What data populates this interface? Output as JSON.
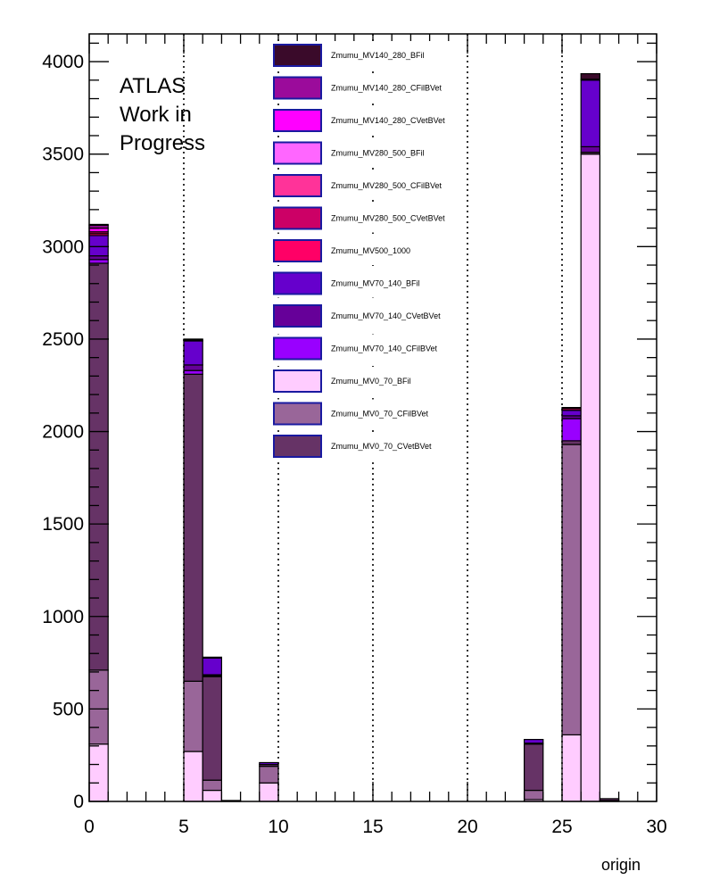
{
  "chart_data": {
    "type": "bar",
    "stacked": true,
    "xlabel": "origin",
    "ylabel": "",
    "xlim": [
      0,
      30
    ],
    "ylim": [
      0,
      4150
    ],
    "x_ticks": [
      0,
      5,
      10,
      15,
      20,
      25,
      30
    ],
    "y_ticks": [
      0,
      500,
      1000,
      1500,
      2000,
      2500,
      3000,
      3500,
      4000
    ],
    "bin_width": 1,
    "annotation": [
      "ATLAS",
      "Work in",
      "Progress"
    ],
    "legend_position": "top-center",
    "vertical_gridlines_x": [
      5,
      10,
      15,
      20,
      25
    ],
    "stack_order": [
      "Zmumu_MV0_70_BFil",
      "Zmumu_MV0_70_CFilBVet",
      "Zmumu_MV0_70_CVetBVet",
      "Zmumu_MV70_140_CFilBVet",
      "Zmumu_MV70_140_CVetBVet",
      "Zmumu_MV70_140_BFil",
      "Zmumu_MV500_1000",
      "Zmumu_MV280_500_CVetBVet",
      "Zmumu_MV280_500_CFilBVet",
      "Zmumu_MV280_500_BFil",
      "Zmumu_MV140_280_CVetBVet",
      "Zmumu_MV140_280_CFilBVet",
      "Zmumu_MV140_280_BFil"
    ],
    "series": [
      {
        "name": "Zmumu_MV140_280_BFil",
        "color": "#3a0a2a",
        "values": [
          5,
          0,
          0,
          0,
          0,
          0,
          0,
          0,
          0,
          0,
          0,
          0,
          0,
          0,
          0,
          0,
          0,
          0,
          0,
          0,
          0,
          0,
          0,
          0,
          0,
          0,
          30,
          0,
          0,
          0
        ]
      },
      {
        "name": "Zmumu_MV140_280_CFilBVet",
        "color": "#9b0b9b",
        "values": [
          15,
          0,
          0,
          0,
          0,
          5,
          5,
          0,
          0,
          0,
          0,
          0,
          0,
          0,
          0,
          0,
          0,
          0,
          0,
          0,
          0,
          0,
          0,
          0,
          0,
          5,
          5,
          0,
          0,
          0
        ]
      },
      {
        "name": "Zmumu_MV140_280_CVetBVet",
        "color": "#ff00ff",
        "values": [
          20,
          0,
          0,
          0,
          0,
          0,
          0,
          0,
          0,
          0,
          0,
          0,
          0,
          0,
          0,
          0,
          0,
          0,
          0,
          0,
          0,
          0,
          0,
          0,
          0,
          0,
          0,
          0,
          0,
          0
        ]
      },
      {
        "name": "Zmumu_MV280_500_BFil",
        "color": "#ff66ff",
        "values": [
          0,
          0,
          0,
          0,
          0,
          0,
          0,
          0,
          0,
          0,
          0,
          0,
          0,
          0,
          0,
          0,
          0,
          0,
          0,
          0,
          0,
          0,
          0,
          0,
          0,
          0,
          0,
          0,
          0,
          0
        ]
      },
      {
        "name": "Zmumu_MV280_500_CFilBVet",
        "color": "#ff3399",
        "values": [
          0,
          0,
          0,
          0,
          0,
          0,
          0,
          0,
          0,
          0,
          0,
          0,
          0,
          0,
          0,
          0,
          0,
          0,
          0,
          0,
          0,
          0,
          0,
          0,
          0,
          0,
          0,
          0,
          0,
          0
        ]
      },
      {
        "name": "Zmumu_MV280_500_CVetBVet",
        "color": "#cc0066",
        "values": [
          10,
          0,
          0,
          0,
          0,
          5,
          0,
          0,
          0,
          0,
          0,
          0,
          0,
          0,
          0,
          0,
          0,
          0,
          0,
          0,
          0,
          0,
          0,
          0,
          0,
          10,
          0,
          0,
          0,
          0
        ]
      },
      {
        "name": "Zmumu_MV500_1000",
        "color": "#ff0066",
        "values": [
          10,
          0,
          0,
          0,
          0,
          0,
          0,
          0,
          0,
          0,
          0,
          0,
          0,
          0,
          0,
          0,
          0,
          0,
          0,
          0,
          0,
          0,
          0,
          0,
          0,
          0,
          0,
          0,
          0,
          0
        ]
      },
      {
        "name": "Zmumu_MV70_140_BFil",
        "color": "#6600cc",
        "values": [
          110,
          0,
          0,
          0,
          0,
          130,
          90,
          0,
          0,
          10,
          0,
          0,
          0,
          0,
          0,
          0,
          0,
          0,
          0,
          0,
          0,
          0,
          0,
          20,
          0,
          30,
          360,
          0,
          0,
          0
        ]
      },
      {
        "name": "Zmumu_MV70_140_CVetBVet",
        "color": "#660099",
        "values": [
          20,
          0,
          0,
          0,
          0,
          30,
          5,
          0,
          0,
          0,
          0,
          0,
          0,
          0,
          0,
          0,
          0,
          0,
          0,
          0,
          0,
          0,
          0,
          5,
          0,
          15,
          30,
          0,
          0,
          0
        ]
      },
      {
        "name": "Zmumu_MV70_140_CFilBVet",
        "color": "#9900ff",
        "values": [
          20,
          0,
          0,
          0,
          0,
          20,
          5,
          0,
          0,
          0,
          0,
          0,
          0,
          0,
          0,
          0,
          0,
          0,
          0,
          0,
          0,
          0,
          0,
          0,
          0,
          120,
          0,
          0,
          0,
          0
        ]
      },
      {
        "name": "Zmumu_MV0_70_BFil",
        "color": "#ffccff",
        "values": [
          310,
          0,
          0,
          0,
          0,
          270,
          60,
          5,
          0,
          100,
          0,
          0,
          0,
          0,
          0,
          0,
          0,
          0,
          0,
          0,
          0,
          0,
          0,
          10,
          0,
          360,
          3500,
          5,
          0,
          0
        ]
      },
      {
        "name": "Zmumu_MV0_70_CFilBVet",
        "color": "#996699",
        "values": [
          400,
          0,
          0,
          0,
          0,
          380,
          55,
          0,
          0,
          90,
          0,
          0,
          0,
          0,
          0,
          0,
          0,
          0,
          0,
          0,
          0,
          0,
          0,
          50,
          0,
          1570,
          0,
          0,
          0,
          0
        ]
      },
      {
        "name": "Zmumu_MV0_70_CVetBVet",
        "color": "#663366",
        "values": [
          2200,
          0,
          0,
          0,
          0,
          1660,
          560,
          0,
          0,
          10,
          0,
          0,
          0,
          0,
          0,
          0,
          0,
          0,
          0,
          0,
          0,
          0,
          0,
          250,
          0,
          20,
          10,
          10,
          0,
          0
        ]
      }
    ]
  }
}
